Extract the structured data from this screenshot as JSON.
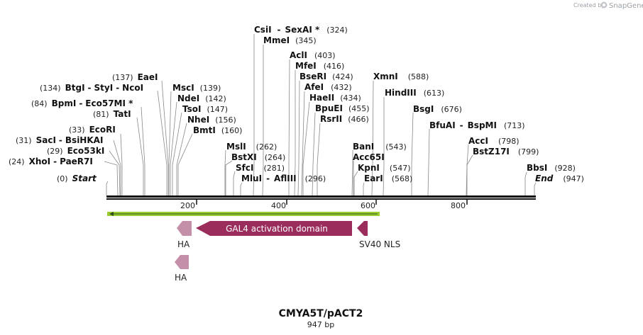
{
  "credit": {
    "prefix": "Created by",
    "brand": "SnapGene",
    "logo_icon": "snapgene-logo-icon"
  },
  "title": "CMYA5T/pACT2",
  "length_label": "947 bp",
  "sequence_length": 947,
  "ruler_ticks": [
    "200",
    "400",
    "600",
    "800"
  ],
  "ends": [
    {
      "label": "Start",
      "position": "(0)"
    },
    {
      "label": "End",
      "position": "(947)"
    }
  ],
  "enzymes": [
    {
      "names": [
        "XhoI",
        "PaeR7I"
      ],
      "position": "(24)"
    },
    {
      "names": [
        "Eco53kI"
      ],
      "position": "(29)"
    },
    {
      "names": [
        "SacI",
        "BsiHKAI"
      ],
      "position": "(31)"
    },
    {
      "names": [
        "EcoRI"
      ],
      "position": "(33)"
    },
    {
      "names": [
        "TatI"
      ],
      "position": "(81)"
    },
    {
      "names": [
        "BpmI",
        "Eco57MI *"
      ],
      "position": "(84)"
    },
    {
      "names": [
        "BtgI",
        "StyI",
        "NcoI"
      ],
      "position": "(134)"
    },
    {
      "names": [
        "EaeI"
      ],
      "position": "(137)"
    },
    {
      "names": [
        "MscI"
      ],
      "position": "(139)"
    },
    {
      "names": [
        "NdeI"
      ],
      "position": "(142)"
    },
    {
      "names": [
        "TsoI"
      ],
      "position": "(147)"
    },
    {
      "names": [
        "NheI"
      ],
      "position": "(156)"
    },
    {
      "names": [
        "BmtI"
      ],
      "position": "(160)"
    },
    {
      "names": [
        "MslI"
      ],
      "position": "(262)"
    },
    {
      "names": [
        "BstXI"
      ],
      "position": "(264)"
    },
    {
      "names": [
        "SfcI"
      ],
      "position": "(281)"
    },
    {
      "names": [
        "MluI",
        "AflIII"
      ],
      "position": "(296)"
    },
    {
      "names": [
        "CsiI",
        "SexAI *"
      ],
      "position": "(324)"
    },
    {
      "names": [
        "MmeI"
      ],
      "position": "(345)"
    },
    {
      "names": [
        "AclI"
      ],
      "position": "(403)"
    },
    {
      "names": [
        "MfeI"
      ],
      "position": "(416)"
    },
    {
      "names": [
        "BseRI"
      ],
      "position": "(424)"
    },
    {
      "names": [
        "AfeI"
      ],
      "position": "(432)"
    },
    {
      "names": [
        "HaeII"
      ],
      "position": "(434)"
    },
    {
      "names": [
        "BpuEI"
      ],
      "position": "(455)"
    },
    {
      "names": [
        "RsrII"
      ],
      "position": "(466)"
    },
    {
      "names": [
        "BanI"
      ],
      "position": "(543)"
    },
    {
      "names": [
        "Acc65I"
      ],
      "position": ""
    },
    {
      "names": [
        "KpnI"
      ],
      "position": "(547)"
    },
    {
      "names": [
        "EarI"
      ],
      "position": "(568)"
    },
    {
      "names": [
        "XmnI"
      ],
      "position": "(588)"
    },
    {
      "names": [
        "HindIII"
      ],
      "position": "(613)"
    },
    {
      "names": [
        "BsgI"
      ],
      "position": "(676)"
    },
    {
      "names": [
        "BfuAI",
        "BspMI"
      ],
      "position": "(713)"
    },
    {
      "names": [
        "AccI"
      ],
      "position": "(798)"
    },
    {
      "names": [
        "BstZ17I"
      ],
      "position": "(799)"
    },
    {
      "names": [
        "BbsI"
      ],
      "position": "(928)"
    }
  ],
  "features": [
    {
      "name": "GAL4 activation domain",
      "label": "GAL4 activation domain",
      "color": "#9b2d5d"
    },
    {
      "name": "SV40 NLS",
      "label": "SV40 NLS",
      "color": "#9b2d5d"
    },
    {
      "name": "HA",
      "label": "HA",
      "color": "#c48fa8"
    },
    {
      "name": "HA",
      "label": "HA",
      "color": "#c48fa8"
    }
  ],
  "orf_color": "#9acd32"
}
